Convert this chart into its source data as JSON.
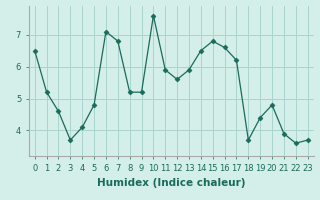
{
  "x": [
    0,
    1,
    2,
    3,
    4,
    5,
    6,
    7,
    8,
    9,
    10,
    11,
    12,
    13,
    14,
    15,
    16,
    17,
    18,
    19,
    20,
    21,
    22,
    23
  ],
  "y": [
    6.5,
    5.2,
    4.6,
    3.7,
    4.1,
    4.8,
    7.1,
    6.8,
    5.2,
    5.2,
    7.6,
    5.9,
    5.6,
    5.9,
    6.5,
    6.8,
    6.6,
    6.2,
    3.7,
    4.4,
    4.8,
    3.9,
    3.6,
    3.7
  ],
  "xlabel": "Humidex (Indice chaleur)",
  "ylim": [
    3.2,
    7.9
  ],
  "xlim": [
    -0.5,
    23.5
  ],
  "yticks": [
    4,
    5,
    6,
    7
  ],
  "xticks": [
    0,
    1,
    2,
    3,
    4,
    5,
    6,
    7,
    8,
    9,
    10,
    11,
    12,
    13,
    14,
    15,
    16,
    17,
    18,
    19,
    20,
    21,
    22,
    23
  ],
  "line_color": "#1a6b5a",
  "marker": "D",
  "marker_size": 2.5,
  "bg_color": "#d4eeea",
  "grid_color": "#aad4ce",
  "xlabel_fontsize": 7.5,
  "tick_fontsize": 6.0
}
